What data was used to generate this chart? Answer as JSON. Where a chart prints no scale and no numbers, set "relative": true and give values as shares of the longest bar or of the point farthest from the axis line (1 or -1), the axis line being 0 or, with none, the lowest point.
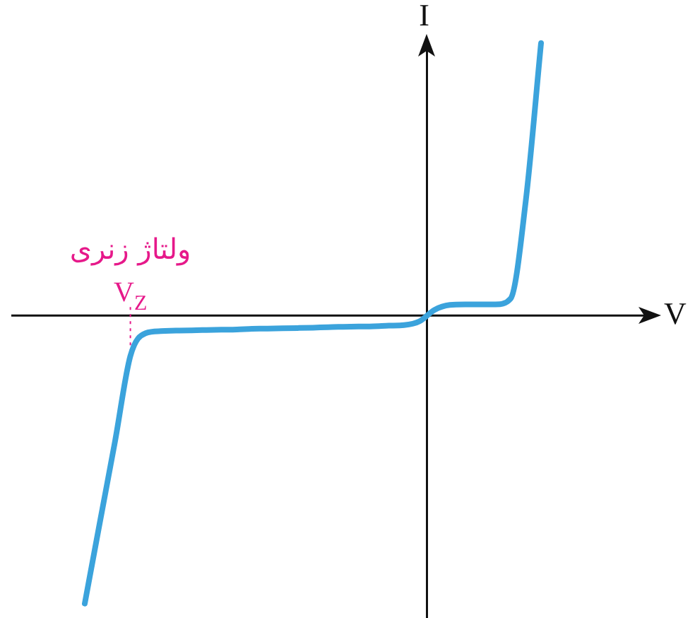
{
  "chart_data": {
    "type": "line",
    "relative": true,
    "xlabel": "V",
    "ylabel": "I",
    "legend": false,
    "marker": "none",
    "categories": [
      null,
      null,
      null,
      null,
      null,
      null,
      null,
      null,
      null,
      null,
      null,
      null,
      null,
      null,
      null,
      null,
      null,
      null,
      null,
      null,
      null,
      null,
      null,
      null,
      null,
      null,
      null,
      null,
      null,
      null,
      null
    ],
    "series": [
      {
        "color": "#3ba3dc",
        "values": [
          -1,
          -0.716,
          -0.434,
          -0.14,
          -0.061,
          -0.054,
          -0.052,
          -0.051,
          -0.05,
          -0.049,
          -0.048,
          -0.046,
          -0.045,
          -0.044,
          -0.043,
          -0.042,
          -0.04,
          -0.039,
          -0.038,
          -0.037,
          -0.035,
          -0.033,
          -0.02,
          0.02,
          0.037,
          0.039,
          0.039,
          0.039,
          0.059,
          0.4,
          0.946
        ]
      }
    ],
    "annotations": [
      "ولتاژ زنری",
      "V$_{Z}$"
    ]
  }
}
